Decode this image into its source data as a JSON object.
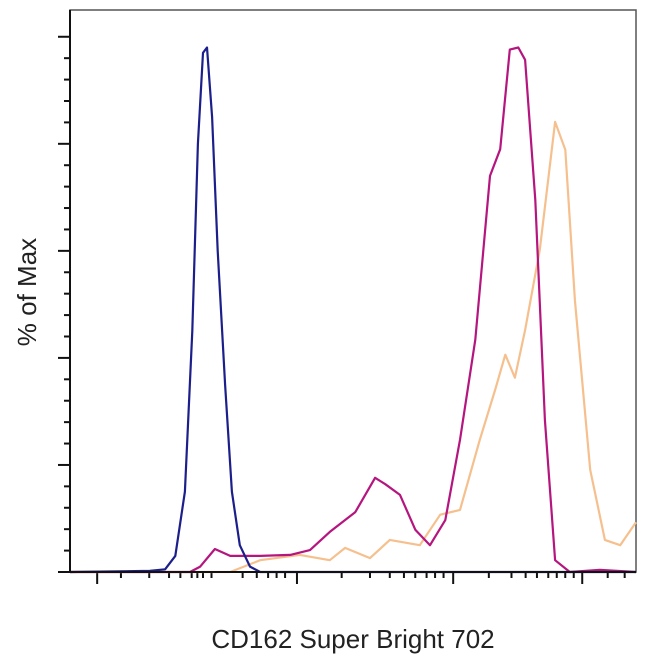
{
  "chart_data": {
    "type": "line",
    "xlabel": "CD162 Super Bright 702",
    "ylabel": "% of Max",
    "xlim": [
      0,
      100
    ],
    "ylim": [
      0,
      105
    ],
    "xticks": [
      4.8,
      40.1,
      67.7,
      90.5
    ],
    "xminorticks": [
      9,
      14,
      17.5,
      19.5,
      21.5,
      22.5,
      23.5,
      25,
      30.5,
      33,
      35,
      36.5,
      38,
      48,
      53,
      56.5,
      59,
      61,
      63,
      64.5,
      66,
      74,
      78,
      80.5,
      82.5,
      84.5,
      86,
      87.5,
      89,
      95,
      98
    ],
    "yticks": [
      0,
      20,
      40,
      60,
      80,
      100
    ],
    "yminorticks": [
      4,
      8,
      12,
      16,
      24,
      28,
      32,
      36,
      44,
      48,
      52,
      56,
      64,
      68,
      72,
      76,
      84,
      88,
      92,
      96
    ],
    "series": [
      {
        "color": "#1c1f8a",
        "x": [
          0,
          14.1,
          16.8,
          18.6,
          20.3,
          21.6,
          22.6,
          23.5,
          24.2,
          25.1,
          26.1,
          27.4,
          28.6,
          30.0,
          31.8,
          33.6,
          100
        ],
        "values": [
          0,
          0.2,
          0.5,
          3,
          15,
          45,
          80,
          97,
          98,
          85,
          60,
          35,
          15,
          5,
          1,
          0,
          0
        ]
      },
      {
        "color": "#b5157e",
        "x": [
          0,
          14.1,
          21.2,
          23.0,
          25.6,
          28.3,
          33.6,
          38.9,
          42.4,
          45.9,
          50.4,
          53.9,
          55.7,
          58.3,
          61.0,
          63.6,
          66.3,
          68.9,
          71.6,
          74.2,
          76.0,
          77.7,
          79.2,
          80.4,
          82.2,
          83.9,
          85.7,
          88.3,
          93.6,
          100
        ],
        "values": [
          0,
          0,
          0,
          1,
          4.3,
          3,
          3,
          3.2,
          4.1,
          7.5,
          11.2,
          17.6,
          16.4,
          14.4,
          7.9,
          5,
          9.7,
          24.7,
          43.4,
          74,
          79,
          97.6,
          98,
          95.7,
          69.5,
          28.4,
          2.2,
          0,
          0.4,
          0
        ]
      },
      {
        "color": "#f5c08e",
        "x": [
          0,
          28.3,
          33.6,
          40.6,
          45.9,
          48.6,
          53.0,
          56.5,
          61.8,
          65.4,
          68.9,
          72.4,
          75.1,
          76.9,
          78.6,
          80.4,
          83.0,
          85.7,
          87.5,
          89.2,
          91.9,
          94.5,
          97.2,
          100
        ],
        "values": [
          0,
          0,
          2.2,
          3.2,
          2.2,
          4.5,
          2.6,
          6,
          5,
          10.7,
          11.6,
          24.7,
          34,
          40.6,
          36.3,
          45.2,
          60.2,
          84.1,
          78.9,
          50.8,
          19.1,
          6,
          5,
          9.3
        ]
      }
    ]
  }
}
